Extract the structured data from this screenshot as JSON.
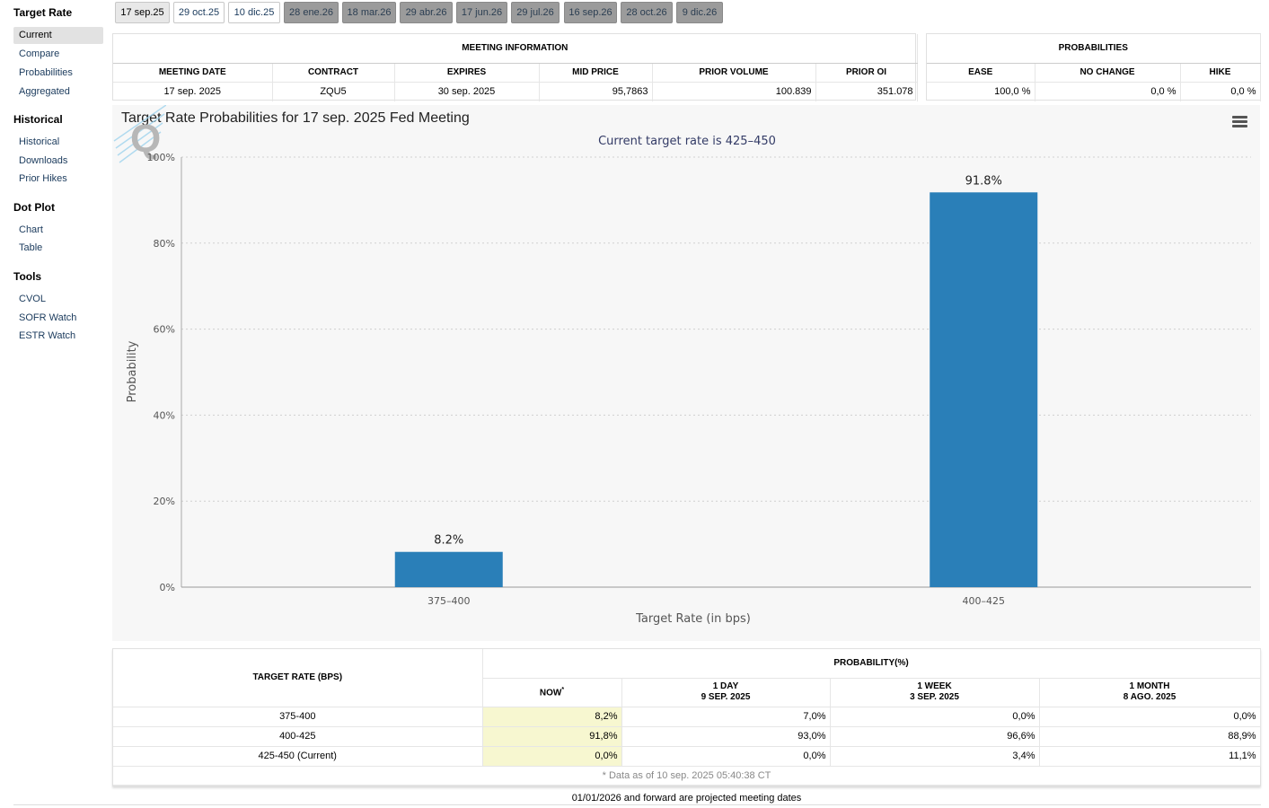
{
  "sidebar": {
    "sections": [
      {
        "title": "Target Rate",
        "items": [
          "Current",
          "Compare",
          "Probabilities",
          "Aggregated"
        ]
      },
      {
        "title": "Historical",
        "items": [
          "Historical",
          "Downloads",
          "Prior Hikes"
        ]
      },
      {
        "title": "Dot Plot",
        "items": [
          "Chart",
          "Table"
        ]
      },
      {
        "title": "Tools",
        "items": [
          "CVOL",
          "SOFR Watch",
          "ESTR Watch"
        ]
      }
    ],
    "active": "Current"
  },
  "tabs": [
    {
      "label": "17 sep.25",
      "state": "active"
    },
    {
      "label": "29 oct.25",
      "state": "normal"
    },
    {
      "label": "10 dic.25",
      "state": "normal"
    },
    {
      "label": "28 ene.26",
      "state": "future"
    },
    {
      "label": "18 mar.26",
      "state": "future"
    },
    {
      "label": "29 abr.26",
      "state": "future"
    },
    {
      "label": "17 jun.26",
      "state": "future"
    },
    {
      "label": "29 jul.26",
      "state": "future"
    },
    {
      "label": "16 sep.26",
      "state": "future"
    },
    {
      "label": "28 oct.26",
      "state": "future"
    },
    {
      "label": "9 dic.26",
      "state": "future"
    }
  ],
  "meeting_info": {
    "title": "MEETING INFORMATION",
    "headers": [
      "MEETING DATE",
      "CONTRACT",
      "EXPIRES",
      "MID PRICE",
      "PRIOR VOLUME",
      "PRIOR OI"
    ],
    "row": [
      "17 sep. 2025",
      "ZQU5",
      "30 sep. 2025",
      "95,7863",
      "100.839",
      "351.078"
    ]
  },
  "probabilities": {
    "title": "PROBABILITIES",
    "headers": [
      "EASE",
      "NO CHANGE",
      "HIKE"
    ],
    "row": [
      "100,0 %",
      "0,0 %",
      "0,0 %"
    ]
  },
  "chart_data": {
    "type": "bar",
    "title": "Target Rate Probabilities for 17 sep. 2025 Fed Meeting",
    "subtitle": "Current target rate is 425–450",
    "categories": [
      "375–400",
      "400–425"
    ],
    "values": [
      8.2,
      91.8
    ],
    "data_labels": [
      "8.2%",
      "91.8%"
    ],
    "xlabel": "Target Rate (in bps)",
    "ylabel": "Probability",
    "ylim": [
      0,
      100
    ],
    "yticks": [
      "0%",
      "20%",
      "40%",
      "60%",
      "80%",
      "100%"
    ],
    "grid": true,
    "bar_color": "#2a7fb8"
  },
  "prob_table": {
    "header_left": "TARGET RATE (BPS)",
    "header_group": "PROBABILITY(%)",
    "columns": [
      {
        "line1": "NOW",
        "sup": "*",
        "line2": ""
      },
      {
        "line1": "1 DAY",
        "line2": "9 SEP. 2025"
      },
      {
        "line1": "1 WEEK",
        "line2": "3 SEP. 2025"
      },
      {
        "line1": "1 MONTH",
        "line2": "8 AGO. 2025"
      }
    ],
    "rows": [
      {
        "rate": "375-400",
        "values": [
          "8,2%",
          "7,0%",
          "0,0%",
          "0,0%"
        ]
      },
      {
        "rate": "400-425",
        "values": [
          "91,8%",
          "93,0%",
          "96,6%",
          "88,9%"
        ]
      },
      {
        "rate": "425-450 (Current)",
        "values": [
          "0,0%",
          "0,0%",
          "3,4%",
          "11,1%"
        ]
      }
    ],
    "note": "* Data as of 10 sep. 2025 05:40:38 CT"
  },
  "footer_note": "01/01/2026 and forward are projected meeting dates"
}
